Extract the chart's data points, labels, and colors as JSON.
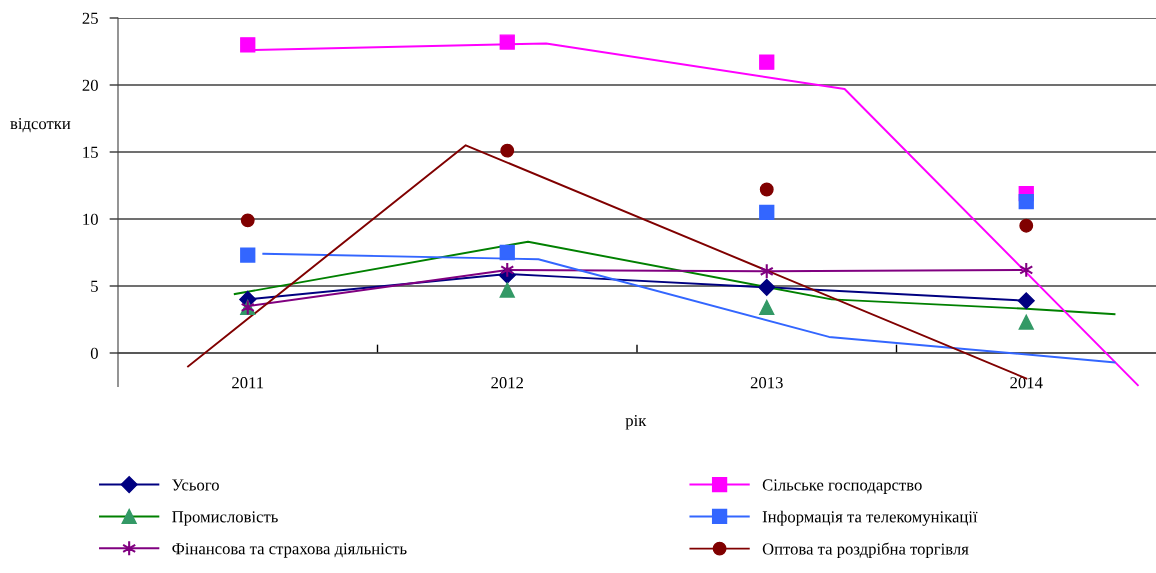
{
  "chart_data": {
    "type": "scatter",
    "ylabel": "відсотки",
    "xlabel": "рік",
    "xlim": [
      2010.5,
      2014.5
    ],
    "xticks": [
      {
        "value": 2011,
        "label": "2011"
      },
      {
        "value": 2011.5,
        "label": null
      },
      {
        "value": 2012,
        "label": "2012"
      },
      {
        "value": 2012.5,
        "label": null
      },
      {
        "value": 2013,
        "label": "2013"
      },
      {
        "value": 2013.5,
        "label": null
      },
      {
        "value": 2014,
        "label": "2014"
      }
    ],
    "ylim": [
      -2.5,
      25
    ],
    "yticks": [
      0,
      5,
      10,
      15,
      20,
      25
    ],
    "grid": "y",
    "legend": "bottom",
    "series": [
      {
        "name": "Усього",
        "color": "#000080",
        "marker": "diamond",
        "x": [
          2011,
          2012,
          2013,
          2014
        ],
        "values": [
          4.0,
          5.8,
          4.9,
          3.9
        ]
      },
      {
        "type": "line",
        "color": "#000080",
        "x": [
          2011,
          2012,
          2012.2,
          2013,
          2014
        ],
        "values": [
          4.0,
          5.9,
          5.7,
          4.9,
          3.9
        ]
      },
      {
        "name": "Промисловість",
        "color": "#339966",
        "marker": "triangle",
        "x": [
          2011,
          2012,
          2013,
          2014
        ],
        "values": [
          3.4,
          4.7,
          3.4,
          2.3
        ]
      },
      {
        "type": "line",
        "color": "#008000",
        "x": [
          2010.95,
          2012.08,
          2013.25,
          2014.0,
          2014.34
        ],
        "values": [
          4.4,
          8.3,
          4.0,
          3.3,
          2.9
        ]
      },
      {
        "name": "Фінансова та страхова діяльність",
        "color": "#800080",
        "marker": "cross",
        "x": [
          2011,
          2012,
          2013,
          2014
        ],
        "values": [
          3.4,
          6.2,
          6.1,
          6.2
        ]
      },
      {
        "type": "line",
        "color": "#800080",
        "x": [
          2011,
          2012,
          2013,
          2014
        ],
        "values": [
          3.5,
          6.2,
          6.1,
          6.2
        ]
      },
      {
        "name": "Сільське господарство",
        "color": "#ff00ff",
        "marker": "square",
        "x": [
          2011,
          2012,
          2013,
          2014
        ],
        "values": [
          23.0,
          23.2,
          21.7,
          11.9
        ]
      },
      {
        "type": "line",
        "color": "#ff00ff",
        "x": [
          2011.01,
          2012.15,
          2013.3,
          2014.43
        ],
        "values": [
          22.6,
          23.1,
          19.7,
          -2.4
        ]
      },
      {
        "name": "Інформація та телекомунікації",
        "color": "#3366ff",
        "marker": "square",
        "x": [
          2011,
          2012,
          2013,
          2014
        ],
        "values": [
          7.3,
          7.5,
          10.5,
          11.3
        ]
      },
      {
        "type": "line",
        "color": "#3366ff",
        "x": [
          2011.06,
          2012.12,
          2013.24,
          2014.34
        ],
        "values": [
          7.4,
          7.0,
          1.2,
          -0.7
        ]
      },
      {
        "name": "Оптова та роздрібна торгівля",
        "color": "#800000",
        "marker": "circle",
        "x": [
          2011,
          2012,
          2013,
          2014
        ],
        "values": [
          9.9,
          15.1,
          12.2,
          9.5
        ]
      },
      {
        "type": "line",
        "color": "#800000",
        "x": [
          2010.77,
          2011.84,
          2014.0
        ],
        "values": [
          -1.0,
          15.5,
          -1.9
        ]
      }
    ]
  }
}
